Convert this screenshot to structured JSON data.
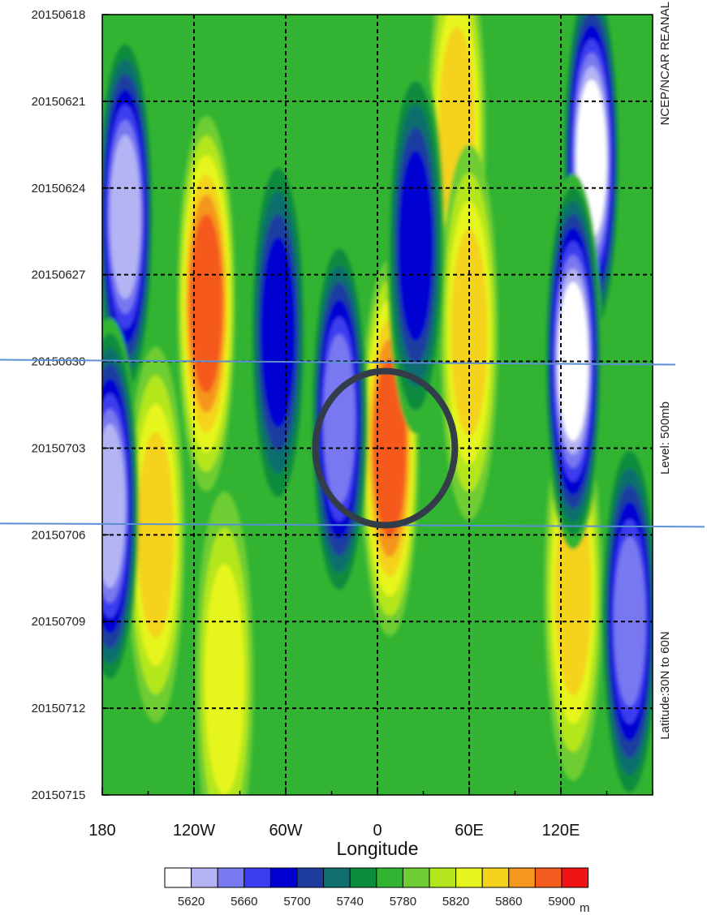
{
  "chart_data": {
    "type": "heatmap",
    "title": "",
    "xlabel": "Longitude",
    "ylabel": "",
    "x_ticks": [
      "180",
      "120W",
      "60W",
      "0",
      "60E",
      "120E"
    ],
    "x_tick_degrees": [
      -180,
      -120,
      -60,
      0,
      60,
      120
    ],
    "x_range_degrees": [
      -180,
      180
    ],
    "y_ticks": [
      "20150618",
      "20150621",
      "20150624",
      "20150627",
      "20150630",
      "20150703",
      "20150706",
      "20150709",
      "20150712",
      "20150715"
    ],
    "y_range": [
      "20150618",
      "20150715"
    ],
    "grid": true,
    "right_labels": {
      "source": "NCEP/NCAR REANAL",
      "level": "Level:  500mb",
      "latitude": "Latitude:30N to 60N"
    },
    "colorbar": {
      "labels": [
        "5620",
        "5660",
        "5700",
        "5740",
        "5780",
        "5820",
        "5860",
        "5900"
      ],
      "unit": "m",
      "colors": [
        "#ffffff",
        "#b4b4f5",
        "#7878f0",
        "#3c3cf0",
        "#0000d2",
        "#1e3ca0",
        "#0f6e6e",
        "#0a8c3c",
        "#32b432",
        "#6ecd32",
        "#b4e61e",
        "#e6f51e",
        "#f5d21e",
        "#f5961e",
        "#f55a1e",
        "#f01414"
      ]
    },
    "levels": [
      5600,
      5620,
      5640,
      5660,
      5680,
      5700,
      5720,
      5740,
      5760,
      5780,
      5800,
      5820,
      5840,
      5860,
      5880,
      5900
    ],
    "ridges": [
      {
        "lon": -112,
        "date": "20150628",
        "value": 5890
      },
      {
        "lon": -145,
        "date": "20150706",
        "value": 5865
      },
      {
        "lon": 8,
        "date": "20150703",
        "value": 5900
      },
      {
        "lon": 52,
        "date": "20150622",
        "value": 5850
      },
      {
        "lon": 60,
        "date": "20150629",
        "value": 5850
      },
      {
        "lon": 128,
        "date": "20150708",
        "value": 5855
      },
      {
        "lon": -100,
        "date": "20150711",
        "value": 5845
      }
    ],
    "troughs": [
      {
        "lon": -165,
        "date": "20150625",
        "value": 5630
      },
      {
        "lon": 140,
        "date": "20150623",
        "value": 5610
      },
      {
        "lon": 128,
        "date": "20150630",
        "value": 5610
      },
      {
        "lon": -25,
        "date": "20150702",
        "value": 5650
      },
      {
        "lon": -65,
        "date": "20150629",
        "value": 5690
      },
      {
        "lon": -175,
        "date": "20150705",
        "value": 5630
      },
      {
        "lon": 165,
        "date": "20150709",
        "value": 5640
      },
      {
        "lon": 25,
        "date": "20150626",
        "value": 5690
      }
    ],
    "highlight": {
      "lines_at_dates": [
        "20150630",
        "20150706"
      ],
      "circle_center": {
        "lon": 5,
        "date": "20150703"
      },
      "line_color": "#5a8fd6",
      "circle_color": "#333d4a"
    }
  }
}
